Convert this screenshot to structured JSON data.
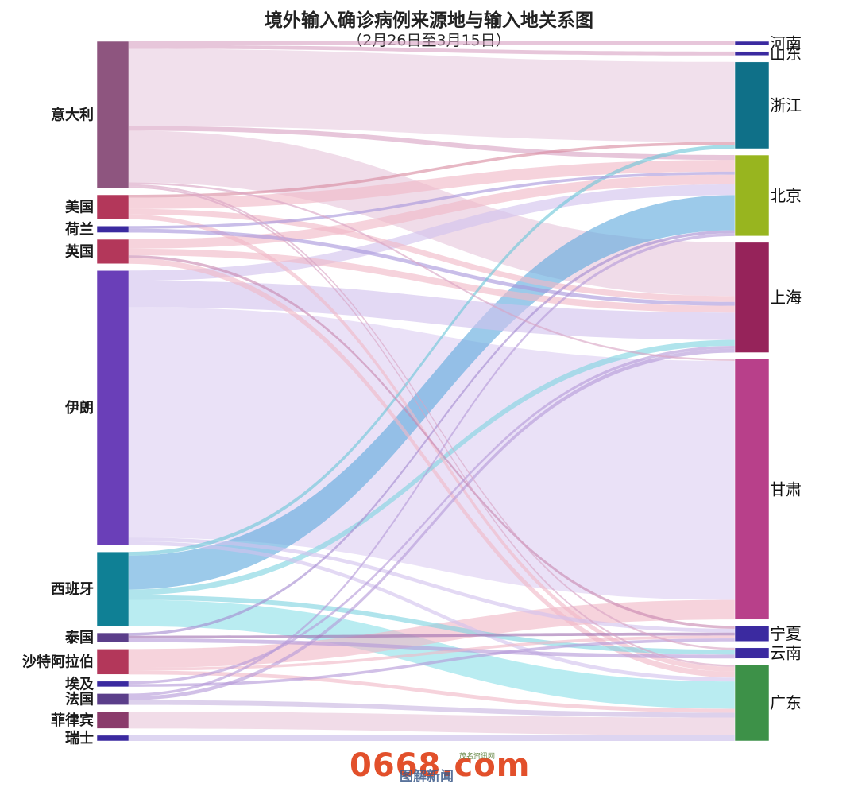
{
  "title": "境外输入确诊病例来源地与输入地关系图",
  "subtitle": "（2月26日至3月15日）",
  "watermark": {
    "logo_text": "0668.com",
    "site_name": "茂名资讯网",
    "under_text": "图解新闻"
  },
  "chart_data": {
    "type": "sankey",
    "sources": [
      {
        "name": "意大利",
        "color": "#8e557f"
      },
      {
        "name": "美国",
        "color": "#b3375a"
      },
      {
        "name": "荷兰",
        "color": "#3b2aa0"
      },
      {
        "name": "英国",
        "color": "#b3375a"
      },
      {
        "name": "伊朗",
        "color": "#6a3fb8"
      },
      {
        "name": "西班牙",
        "color": "#0f8095"
      },
      {
        "name": "泰国",
        "color": "#5b3e8a"
      },
      {
        "name": "沙特阿拉伯",
        "color": "#b3375a"
      },
      {
        "name": "埃及",
        "color": "#3b2aa0"
      },
      {
        "name": "法国",
        "color": "#5b3e8a"
      },
      {
        "name": "菲律宾",
        "color": "#8a3b6b"
      },
      {
        "name": "瑞士",
        "color": "#3b2aa0"
      }
    ],
    "targets": [
      {
        "name": "河南",
        "color": "#3b2aa0"
      },
      {
        "name": "山东",
        "color": "#3b2aa0"
      },
      {
        "name": "浙江",
        "color": "#0f7088"
      },
      {
        "name": "北京",
        "color": "#98b51f"
      },
      {
        "name": "上海",
        "color": "#96235a"
      },
      {
        "name": "甘肃",
        "color": "#b8408a"
      },
      {
        "name": "宁夏",
        "color": "#3b2aa0"
      },
      {
        "name": "云南",
        "color": "#3b2aa0"
      },
      {
        "name": "广东",
        "color": "#3d9148"
      }
    ],
    "flows": [
      {
        "from": "意大利",
        "to": "河南",
        "value": 4,
        "color": "#d9a3c4"
      },
      {
        "from": "意大利",
        "to": "山东",
        "value": 4,
        "color": "#d9a3c4"
      },
      {
        "from": "意大利",
        "to": "浙江",
        "value": 82,
        "color": "#e6c6dc"
      },
      {
        "from": "意大利",
        "to": "北京",
        "value": 5,
        "color": "#d9a3c4"
      },
      {
        "from": "意大利",
        "to": "上海",
        "value": 55,
        "color": "#e6c6dc"
      },
      {
        "from": "意大利",
        "to": "甘肃",
        "value": 2,
        "color": "#d9a3c4"
      },
      {
        "from": "意大利",
        "to": "云南",
        "value": 2,
        "color": "#d9a3c4"
      },
      {
        "from": "意大利",
        "to": "广东",
        "value": 2,
        "color": "#d9a3c4"
      },
      {
        "from": "美国",
        "to": "浙江",
        "value": 3,
        "color": "#d98aa0"
      },
      {
        "from": "美国",
        "to": "北京",
        "value": 12,
        "color": "#f1b8c6"
      },
      {
        "from": "美国",
        "to": "上海",
        "value": 6,
        "color": "#f1b8c6"
      },
      {
        "from": "美国",
        "to": "广东",
        "value": 5,
        "color": "#f1b8c6"
      },
      {
        "from": "荷兰",
        "to": "北京",
        "value": 3,
        "color": "#a896dc"
      },
      {
        "from": "荷兰",
        "to": "上海",
        "value": 4,
        "color": "#a896dc"
      },
      {
        "from": "英国",
        "to": "北京",
        "value": 10,
        "color": "#f1b8c6"
      },
      {
        "from": "英国",
        "to": "上海",
        "value": 7,
        "color": "#f1b8c6"
      },
      {
        "from": "英国",
        "to": "宁夏",
        "value": 3,
        "color": "#c888b0"
      },
      {
        "from": "英国",
        "to": "广东",
        "value": 6,
        "color": "#f1b8c6"
      },
      {
        "from": "伊朗",
        "to": "北京",
        "value": 11,
        "color": "#d2c2ee"
      },
      {
        "from": "伊朗",
        "to": "上海",
        "value": 28,
        "color": "#d2c2ee"
      },
      {
        "from": "伊朗",
        "to": "甘肃",
        "value": 245,
        "color": "#d8c8f0"
      },
      {
        "from": "伊朗",
        "to": "宁夏",
        "value": 4,
        "color": "#d2c2ee"
      },
      {
        "from": "伊朗",
        "to": "广东",
        "value": 4,
        "color": "#d2c2ee"
      },
      {
        "from": "西班牙",
        "to": "浙江",
        "value": 4,
        "color": "#6cc7d9"
      },
      {
        "from": "西班牙",
        "to": "北京",
        "value": 36,
        "color": "#5fa9dd"
      },
      {
        "from": "西班牙",
        "to": "上海",
        "value": 6,
        "color": "#7fd4e0"
      },
      {
        "from": "西班牙",
        "to": "云南",
        "value": 5,
        "color": "#7fd4e0"
      },
      {
        "from": "西班牙",
        "to": "广东",
        "value": 28,
        "color": "#8ee0e8"
      },
      {
        "from": "泰国",
        "to": "北京",
        "value": 3,
        "color": "#a48ad0"
      },
      {
        "from": "泰国",
        "to": "宁夏",
        "value": 3,
        "color": "#a070b0"
      },
      {
        "from": "泰国",
        "to": "云南",
        "value": 4,
        "color": "#b59ad8"
      },
      {
        "from": "沙特阿拉伯",
        "to": "甘肃",
        "value": 20,
        "color": "#f1b8c6"
      },
      {
        "from": "沙特阿拉伯",
        "to": "宁夏",
        "value": 3,
        "color": "#f1b8c6"
      },
      {
        "from": "沙特阿拉伯",
        "to": "广东",
        "value": 4,
        "color": "#f1b8c6"
      },
      {
        "from": "埃及",
        "to": "上海",
        "value": 3,
        "color": "#b59ad8"
      },
      {
        "from": "埃及",
        "to": "宁夏",
        "value": 3,
        "color": "#b59ad8"
      },
      {
        "from": "法国",
        "to": "北京",
        "value": 3,
        "color": "#b59ad8"
      },
      {
        "from": "法国",
        "to": "上海",
        "value": 4,
        "color": "#b59ad8"
      },
      {
        "from": "法国",
        "to": "广东",
        "value": 5,
        "color": "#c8b4e0"
      },
      {
        "from": "菲律宾",
        "to": "广东",
        "value": 18,
        "color": "#e8c6da"
      },
      {
        "from": "瑞士",
        "to": "广东",
        "value": 6,
        "color": "#c8bce8"
      }
    ]
  }
}
